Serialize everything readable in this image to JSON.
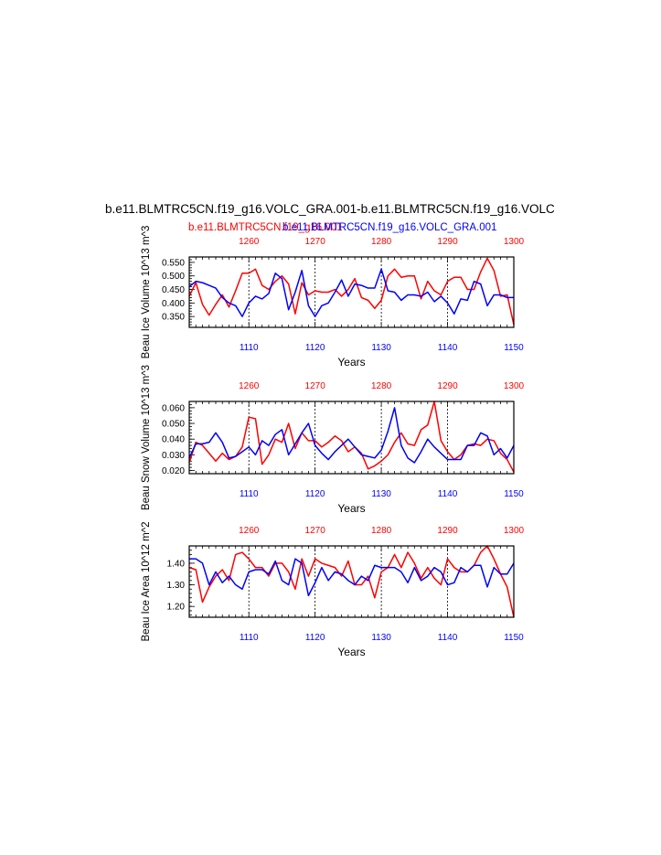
{
  "main_title": "b.e11.BLMTRC5CN.f19_g16.VOLC_GRA.001-b.e11.BLMTRC5CN.f19_g16.VOLC",
  "legend": {
    "red_label": "b.e11.BLMTRC5CN.f19_g16.001",
    "blue_label": "b.e11.BLMTRC5CN.f19_g16.VOLC_GRA.001"
  },
  "colors": {
    "red": "#ff0000",
    "blue": "#0000ff",
    "axis": "#000000"
  },
  "chart_data": [
    {
      "type": "line",
      "ylabel": "Beau Ice Volume 10^13 m^3",
      "xlabel": "Years",
      "ylim": [
        0.31,
        0.57
      ],
      "yticks": [
        "0.350",
        "0.400",
        "0.450",
        "0.500",
        "0.550"
      ],
      "ytick_values": [
        0.35,
        0.4,
        0.45,
        0.5,
        0.55
      ],
      "x_bottom": {
        "range": [
          1101,
          1150
        ],
        "ticks": [
          "1110",
          "1120",
          "1130",
          "1140",
          "1150"
        ]
      },
      "x_top": {
        "range": [
          1251,
          1300
        ],
        "ticks": [
          "1260",
          "1270",
          "1280",
          "1290",
          "1300"
        ]
      },
      "vertical_dashed_gridlines": [
        1110,
        1120,
        1130,
        1140
      ],
      "series": [
        {
          "name": "b.e11.BLMTRC5CN.f19_g16.001",
          "color": "red",
          "axis": "top",
          "values": [
            0.425,
            0.475,
            0.395,
            0.355,
            0.395,
            0.43,
            0.385,
            0.445,
            0.51,
            0.51,
            0.525,
            0.465,
            0.45,
            0.48,
            0.5,
            0.47,
            0.36,
            0.475,
            0.43,
            0.445,
            0.44,
            0.44,
            0.45,
            0.425,
            0.45,
            0.49,
            0.42,
            0.41,
            0.38,
            0.41,
            0.5,
            0.525,
            0.495,
            0.5,
            0.5,
            0.415,
            0.48,
            0.445,
            0.43,
            0.48,
            0.495,
            0.495,
            0.45,
            0.45,
            0.515,
            0.565,
            0.52,
            0.425,
            0.43,
            0.32
          ]
        },
        {
          "name": "b.e11.BLMTRC5CN.f19_g16.VOLC_GRA.001",
          "color": "blue",
          "axis": "bottom",
          "values": [
            0.46,
            0.48,
            0.475,
            0.465,
            0.455,
            0.42,
            0.4,
            0.39,
            0.35,
            0.4,
            0.425,
            0.415,
            0.435,
            0.51,
            0.49,
            0.375,
            0.44,
            0.52,
            0.39,
            0.35,
            0.39,
            0.4,
            0.44,
            0.485,
            0.425,
            0.47,
            0.465,
            0.455,
            0.455,
            0.525,
            0.445,
            0.44,
            0.41,
            0.43,
            0.43,
            0.425,
            0.44,
            0.405,
            0.425,
            0.4,
            0.36,
            0.415,
            0.41,
            0.48,
            0.47,
            0.39,
            0.43,
            0.43,
            0.42,
            0.42
          ]
        }
      ]
    },
    {
      "type": "line",
      "ylabel": "Beau Snow Volume 10^13 m^3",
      "xlabel": "Years",
      "ylim": [
        0.018,
        0.064
      ],
      "yticks": [
        "0.020",
        "0.030",
        "0.040",
        "0.050",
        "0.060"
      ],
      "ytick_values": [
        0.02,
        0.03,
        0.04,
        0.05,
        0.06
      ],
      "x_bottom": {
        "range": [
          1101,
          1150
        ],
        "ticks": [
          "1110",
          "1120",
          "1130",
          "1140",
          "1150"
        ]
      },
      "x_top": {
        "range": [
          1251,
          1300
        ],
        "ticks": [
          "1260",
          "1270",
          "1280",
          "1290",
          "1300"
        ]
      },
      "vertical_dashed_gridlines": [
        1110,
        1120,
        1130,
        1140
      ],
      "series": [
        {
          "name": "b.e11.BLMTRC5CN.f19_g16.001",
          "color": "red",
          "axis": "top",
          "values": [
            0.025,
            0.038,
            0.036,
            0.031,
            0.026,
            0.031,
            0.027,
            0.029,
            0.035,
            0.054,
            0.053,
            0.024,
            0.03,
            0.04,
            0.038,
            0.05,
            0.034,
            0.044,
            0.039,
            0.039,
            0.035,
            0.038,
            0.042,
            0.039,
            0.032,
            0.035,
            0.031,
            0.021,
            0.023,
            0.026,
            0.03,
            0.038,
            0.044,
            0.037,
            0.036,
            0.046,
            0.049,
            0.064,
            0.039,
            0.032,
            0.027,
            0.03,
            0.036,
            0.037,
            0.036,
            0.04,
            0.039,
            0.031,
            0.027,
            0.019
          ]
        },
        {
          "name": "b.e11.BLMTRC5CN.f19_g16.VOLC_GRA.001",
          "color": "blue",
          "axis": "bottom",
          "values": [
            0.028,
            0.037,
            0.037,
            0.038,
            0.044,
            0.038,
            0.028,
            0.029,
            0.032,
            0.035,
            0.03,
            0.039,
            0.036,
            0.043,
            0.046,
            0.03,
            0.037,
            0.044,
            0.05,
            0.036,
            0.031,
            0.027,
            0.032,
            0.036,
            0.04,
            0.035,
            0.03,
            0.029,
            0.028,
            0.033,
            0.045,
            0.06,
            0.036,
            0.028,
            0.025,
            0.032,
            0.04,
            0.035,
            0.031,
            0.027,
            0.027,
            0.027,
            0.036,
            0.036,
            0.044,
            0.042,
            0.03,
            0.034,
            0.028,
            0.036
          ]
        }
      ]
    },
    {
      "type": "line",
      "ylabel": "Beau Ice Area 10^12 m^2",
      "xlabel": "Years",
      "ylim": [
        1.15,
        1.48
      ],
      "yticks": [
        "1.20",
        "1.30",
        "1.40"
      ],
      "ytick_values": [
        1.2,
        1.3,
        1.4
      ],
      "x_bottom": {
        "range": [
          1101,
          1150
        ],
        "ticks": [
          "1110",
          "1120",
          "1130",
          "1140",
          "1150"
        ]
      },
      "x_top": {
        "range": [
          1251,
          1300
        ],
        "ticks": [
          "1260",
          "1270",
          "1280",
          "1290",
          "1300"
        ]
      },
      "vertical_dashed_gridlines": [
        1110,
        1120,
        1130,
        1140
      ],
      "series": [
        {
          "name": "b.e11.BLMTRC5CN.f19_g16.001",
          "color": "red",
          "axis": "top",
          "values": [
            1.38,
            1.37,
            1.22,
            1.29,
            1.34,
            1.37,
            1.32,
            1.44,
            1.45,
            1.42,
            1.38,
            1.38,
            1.34,
            1.4,
            1.4,
            1.36,
            1.28,
            1.42,
            1.34,
            1.42,
            1.4,
            1.39,
            1.38,
            1.34,
            1.41,
            1.3,
            1.3,
            1.34,
            1.24,
            1.36,
            1.38,
            1.44,
            1.38,
            1.45,
            1.4,
            1.33,
            1.38,
            1.33,
            1.3,
            1.42,
            1.38,
            1.36,
            1.36,
            1.39,
            1.45,
            1.48,
            1.42,
            1.35,
            1.29,
            1.15
          ]
        },
        {
          "name": "b.e11.BLMTRC5CN.f19_g16.VOLC_GRA.001",
          "color": "blue",
          "axis": "bottom",
          "values": [
            1.42,
            1.42,
            1.4,
            1.3,
            1.36,
            1.31,
            1.34,
            1.3,
            1.28,
            1.36,
            1.37,
            1.37,
            1.35,
            1.41,
            1.32,
            1.3,
            1.42,
            1.4,
            1.25,
            1.31,
            1.38,
            1.32,
            1.36,
            1.35,
            1.32,
            1.3,
            1.34,
            1.32,
            1.39,
            1.38,
            1.38,
            1.38,
            1.36,
            1.31,
            1.38,
            1.32,
            1.34,
            1.38,
            1.36,
            1.3,
            1.31,
            1.38,
            1.36,
            1.39,
            1.39,
            1.29,
            1.38,
            1.35,
            1.35,
            1.4
          ]
        }
      ]
    }
  ]
}
